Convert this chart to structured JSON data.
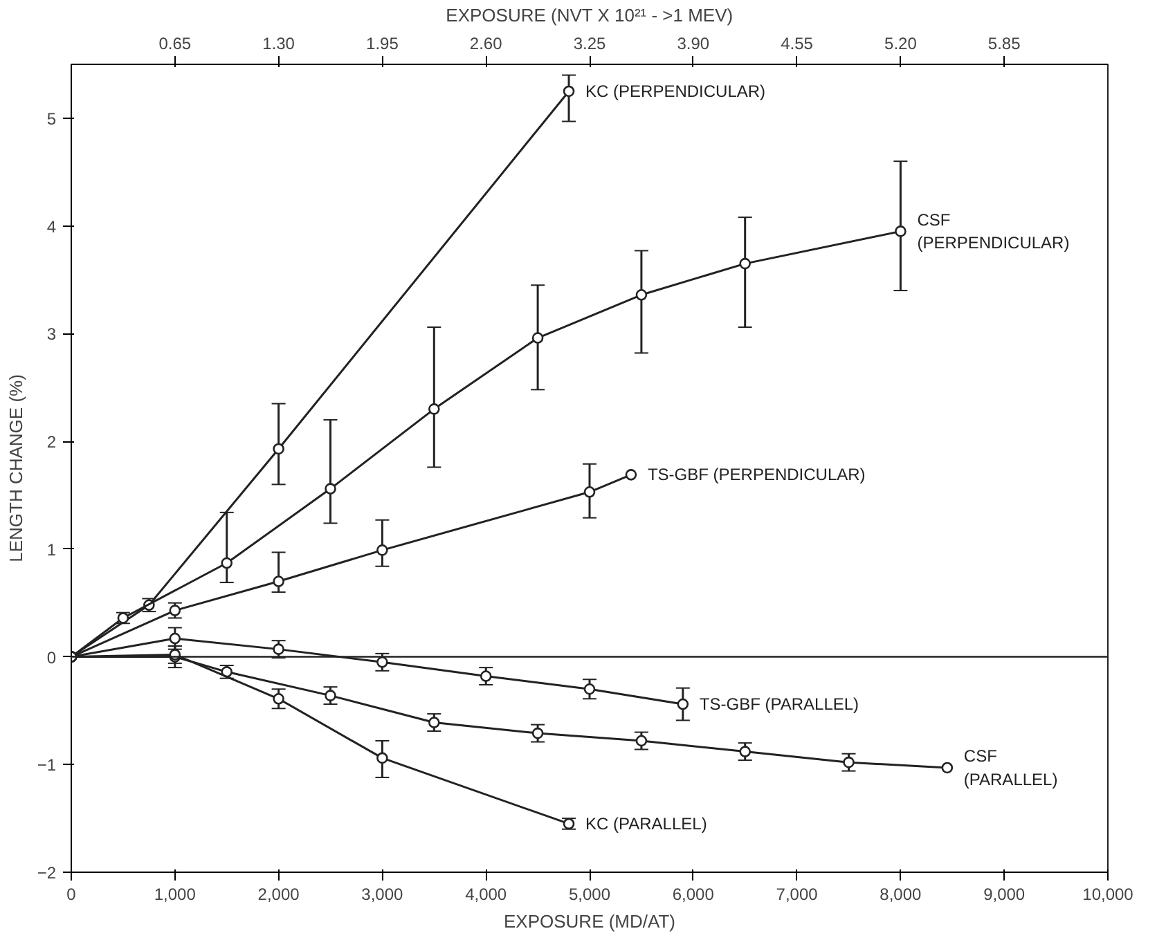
{
  "chart_data": {
    "type": "line",
    "xlabel": "EXPOSURE (MD/AT)",
    "ylabel": "LENGTH CHANGE (%)",
    "x2label": "EXPOSURE (NVT X 10²¹ - >1 MEV)",
    "xlim": [
      0,
      10000
    ],
    "ylim": [
      -2,
      5.5
    ],
    "x2lim": [
      0,
      6.5
    ],
    "xticks": [
      0,
      {
        "value": 1000,
        "label": "1,000"
      },
      {
        "value": 2000,
        "label": "2,000"
      },
      {
        "value": 3000,
        "label": "3,000"
      },
      {
        "value": 4000,
        "label": "4,000"
      },
      {
        "value": 5000,
        "label": "5,000"
      },
      {
        "value": 6000,
        "label": "6,000"
      },
      {
        "value": 7000,
        "label": "7,000"
      },
      {
        "value": 8000,
        "label": "8,000"
      },
      {
        "value": 9000,
        "label": "9,000"
      },
      {
        "value": 10000,
        "label": "10,000"
      }
    ],
    "x2ticks": [
      0.65,
      {
        "value": 1.3,
        "label": "1.30"
      },
      1.95,
      {
        "value": 2.6,
        "label": "2.60"
      },
      3.25,
      {
        "value": 3.9,
        "label": "3.90"
      },
      4.55,
      {
        "value": 5.2,
        "label": "5.20"
      },
      5.85
    ],
    "yticks": [
      -2,
      -1,
      0,
      1,
      2,
      3,
      4,
      5
    ],
    "ref_lines": [
      {
        "axis": "y",
        "value": 0,
        "color": "#222222"
      }
    ],
    "grid": false,
    "marker": "circle",
    "line_style": "solid",
    "series": [
      {
        "name": "KC (PERPENDICULAR)",
        "color": "#222222",
        "x": [
          0,
          750,
          2000,
          4800
        ],
        "values": [
          0,
          0.48,
          1.93,
          5.25
        ],
        "errors": [
          null,
          0.06,
          [
            1.6,
            2.35
          ],
          [
            4.97,
            5.4
          ]
        ]
      },
      {
        "name": "CSF (PERPENDICULAR)",
        "color": "#222222",
        "x": [
          0,
          500,
          1500,
          2500,
          3500,
          4500,
          5500,
          6500,
          8000
        ],
        "values": [
          0,
          0.36,
          0.87,
          1.56,
          2.3,
          2.96,
          3.36,
          3.65,
          3.95
        ],
        "errors": [
          null,
          0.05,
          [
            0.69,
            1.34
          ],
          [
            1.24,
            2.2
          ],
          [
            1.76,
            3.06
          ],
          [
            2.48,
            3.45
          ],
          [
            2.82,
            3.77
          ],
          [
            3.06,
            4.08
          ],
          [
            3.4,
            4.6
          ]
        ]
      },
      {
        "name": "TS-GBF (PERPENDICULAR)",
        "color": "#222222",
        "x": [
          0,
          1000,
          2000,
          3000,
          5000,
          5400
        ],
        "values": [
          0,
          0.43,
          0.7,
          0.99,
          1.53,
          1.69
        ],
        "errors": [
          null,
          0.07,
          [
            0.6,
            0.97
          ],
          [
            0.84,
            1.27
          ],
          [
            1.29,
            1.79
          ],
          null
        ]
      },
      {
        "name": "TS-GBF (PARALLEL)",
        "color": "#222222",
        "x": [
          0,
          1000,
          2000,
          3000,
          4000,
          5000,
          5900
        ],
        "values": [
          0,
          0.17,
          0.07,
          -0.05,
          -0.18,
          -0.3,
          -0.44
        ],
        "errors": [
          null,
          0.1,
          0.08,
          0.08,
          0.08,
          0.09,
          0.15
        ]
      },
      {
        "name": "CSF (PARALLEL)",
        "color": "#222222",
        "x": [
          0,
          1000,
          1500,
          2500,
          3500,
          4500,
          5500,
          6500,
          7500,
          8450
        ],
        "values": [
          0,
          0,
          -0.14,
          -0.36,
          -0.61,
          -0.71,
          -0.78,
          -0.88,
          -0.98,
          -1.03
        ],
        "errors": [
          null,
          0.1,
          0.06,
          0.08,
          0.08,
          0.08,
          0.08,
          0.08,
          0.08,
          null
        ]
      },
      {
        "name": "KC (PARALLEL)",
        "color": "#222222",
        "x": [
          0,
          1000,
          2000,
          3000,
          4800
        ],
        "values": [
          0,
          0.02,
          -0.39,
          -0.94,
          -1.55
        ],
        "errors": [
          null,
          0.08,
          0.09,
          [
            -1.12,
            -0.78
          ],
          0.05
        ]
      }
    ]
  }
}
